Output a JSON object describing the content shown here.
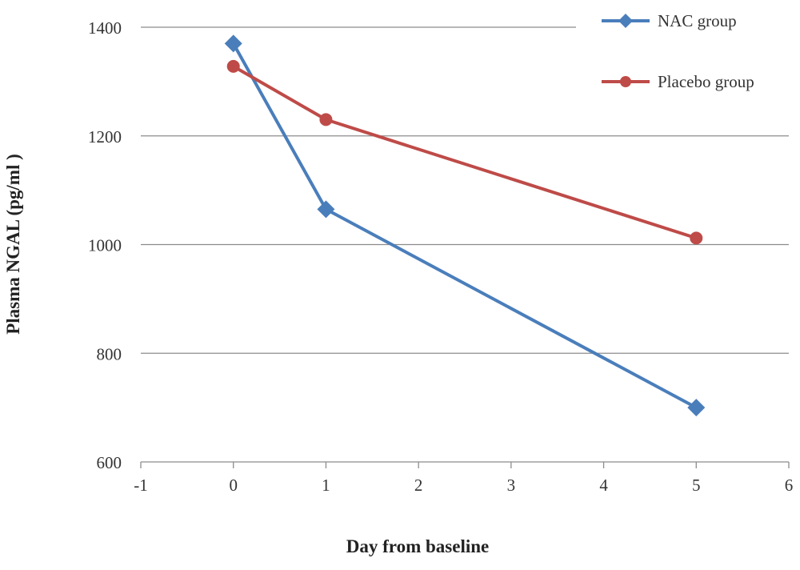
{
  "chart_data": {
    "type": "line",
    "title": "",
    "xlabel": "Day from baseline",
    "ylabel": "Plasma NGAL (pg/ml )",
    "xlim": [
      -1,
      6
    ],
    "ylim": [
      600,
      1400
    ],
    "xticks": [
      -1,
      0,
      1,
      2,
      3,
      4,
      5,
      6
    ],
    "yticks": [
      600,
      800,
      1000,
      1200,
      1400
    ],
    "grid": "horizontal",
    "legend_position": "top-right",
    "series": [
      {
        "name": "NAC group",
        "color": "#4a7ebb",
        "marker": "diamond",
        "x": [
          0,
          1,
          5
        ],
        "y": [
          1370,
          1065,
          700
        ]
      },
      {
        "name": "Placebo group",
        "color": "#be4b48",
        "marker": "circle",
        "x": [
          0,
          1,
          5
        ],
        "y": [
          1328,
          1230,
          1012
        ]
      }
    ]
  }
}
